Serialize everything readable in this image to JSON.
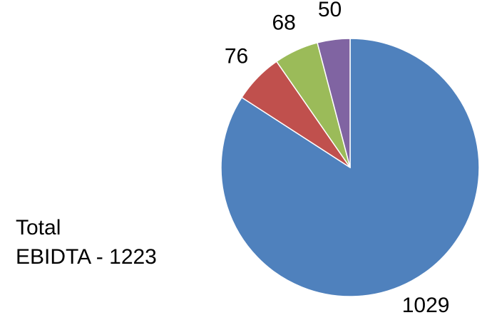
{
  "chart_data": {
    "type": "pie",
    "values": [
      1029,
      76,
      68,
      50
    ],
    "colors": [
      "#4f81bd",
      "#c0504d",
      "#9bbb59",
      "#8064a2"
    ],
    "start_angle": 0,
    "direction": "clockwise",
    "annotation": [
      "Total",
      "EBIDTA - 1223"
    ]
  }
}
